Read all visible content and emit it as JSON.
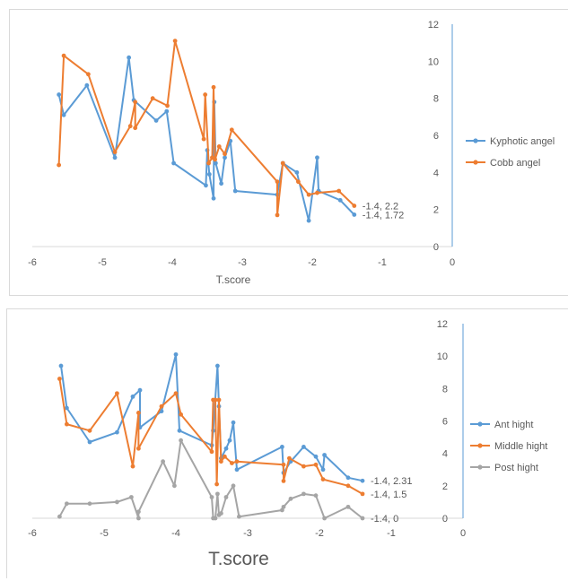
{
  "chart_data": [
    {
      "type": "line",
      "title": "",
      "xlabel": "T.score",
      "ylabel": "",
      "xlim": [
        -6,
        0
      ],
      "ylim": [
        0,
        12
      ],
      "x_ticks": [
        "-6",
        "-5",
        "-4",
        "-3",
        "-2",
        "-1",
        "0"
      ],
      "y_ticks": [
        "0",
        "2",
        "4",
        "6",
        "8",
        "10",
        "12"
      ],
      "grid": false,
      "legend_position": "right",
      "series": [
        {
          "name": "Kyphotic angel",
          "color": "#5b9bd5",
          "points": [
            [
              -5.62,
              8.2
            ],
            [
              -5.55,
              7.1
            ],
            [
              -5.22,
              8.7
            ],
            [
              -4.82,
              4.8
            ],
            [
              -4.62,
              10.2
            ],
            [
              -4.55,
              7.9
            ],
            [
              -4.23,
              6.8
            ],
            [
              -4.08,
              7.3
            ],
            [
              -3.98,
              4.5
            ],
            [
              -3.52,
              3.3
            ],
            [
              -3.5,
              5.2
            ],
            [
              -3.47,
              3.9
            ],
            [
              -3.41,
              2.6
            ],
            [
              -3.4,
              7.8
            ],
            [
              -3.38,
              4.5
            ],
            [
              -3.3,
              3.4
            ],
            [
              -3.25,
              4.8
            ],
            [
              -3.17,
              5.7
            ],
            [
              -3.1,
              3.0
            ],
            [
              -2.5,
              2.8
            ],
            [
              -2.42,
              4.5
            ],
            [
              -2.22,
              4.0
            ],
            [
              -2.05,
              1.4
            ],
            [
              -1.93,
              4.8
            ],
            [
              -1.91,
              3.0
            ],
            [
              -1.6,
              2.5
            ],
            [
              -1.4,
              1.72
            ]
          ],
          "end_label": "-1.4, 1.72"
        },
        {
          "name": "Cobb angel",
          "color": "#ed7d31",
          "points": [
            [
              -5.62,
              4.4
            ],
            [
              -5.55,
              10.3
            ],
            [
              -5.2,
              9.3
            ],
            [
              -4.82,
              5.1
            ],
            [
              -4.6,
              6.5
            ],
            [
              -4.53,
              7.8
            ],
            [
              -4.53,
              6.4
            ],
            [
              -4.28,
              8.0
            ],
            [
              -4.07,
              7.6
            ],
            [
              -3.96,
              11.1
            ],
            [
              -3.55,
              5.8
            ],
            [
              -3.53,
              8.2
            ],
            [
              -3.48,
              4.5
            ],
            [
              -3.43,
              4.8
            ],
            [
              -3.41,
              8.6
            ],
            [
              -3.39,
              4.7
            ],
            [
              -3.33,
              5.4
            ],
            [
              -3.25,
              5.0
            ],
            [
              -3.15,
              6.3
            ],
            [
              -2.5,
              3.5
            ],
            [
              -2.5,
              1.7
            ],
            [
              -2.42,
              4.5
            ],
            [
              -2.2,
              3.5
            ],
            [
              -2.05,
              2.8
            ],
            [
              -1.93,
              2.9
            ],
            [
              -1.62,
              3.0
            ],
            [
              -1.4,
              2.2
            ]
          ],
          "end_label": "-1.4, 2.2"
        }
      ]
    },
    {
      "type": "line",
      "title": "",
      "xlabel": "T.score",
      "ylabel": "",
      "xlim": [
        -6,
        0
      ],
      "ylim": [
        0,
        12
      ],
      "x_ticks": [
        "-6",
        "-5",
        "-4",
        "-3",
        "-2",
        "-1",
        "0"
      ],
      "y_ticks": [
        "0",
        "2",
        "4",
        "6",
        "8",
        "10",
        "12"
      ],
      "grid": false,
      "legend_position": "right",
      "series": [
        {
          "name": "Ant hight",
          "color": "#5b9bd5",
          "points": [
            [
              -5.6,
              9.4
            ],
            [
              -5.52,
              6.8
            ],
            [
              -5.2,
              4.7
            ],
            [
              -4.82,
              5.3
            ],
            [
              -4.6,
              7.5
            ],
            [
              -4.5,
              7.9
            ],
            [
              -4.5,
              5.6
            ],
            [
              -4.2,
              6.6
            ],
            [
              -4.0,
              10.1
            ],
            [
              -3.95,
              5.4
            ],
            [
              -3.5,
              4.5
            ],
            [
              -3.48,
              5.4
            ],
            [
              -3.42,
              9.4
            ],
            [
              -3.4,
              6.9
            ],
            [
              -3.37,
              3.7
            ],
            [
              -3.3,
              4.3
            ],
            [
              -3.25,
              4.8
            ],
            [
              -3.2,
              5.9
            ],
            [
              -3.15,
              3.0
            ],
            [
              -2.52,
              4.4
            ],
            [
              -2.5,
              2.8
            ],
            [
              -2.4,
              3.5
            ],
            [
              -2.22,
              4.4
            ],
            [
              -2.05,
              3.8
            ],
            [
              -1.95,
              3.0
            ],
            [
              -1.93,
              3.9
            ],
            [
              -1.6,
              2.5
            ],
            [
              -1.4,
              2.31
            ]
          ],
          "end_label": "-1.4, 2.31"
        },
        {
          "name": "Middle hight",
          "color": "#ed7d31",
          "points": [
            [
              -5.62,
              8.6
            ],
            [
              -5.52,
              5.8
            ],
            [
              -5.2,
              5.4
            ],
            [
              -4.82,
              7.7
            ],
            [
              -4.6,
              3.2
            ],
            [
              -4.52,
              6.5
            ],
            [
              -4.52,
              4.3
            ],
            [
              -4.2,
              6.9
            ],
            [
              -4.0,
              7.7
            ],
            [
              -3.93,
              6.4
            ],
            [
              -3.5,
              4.1
            ],
            [
              -3.48,
              7.3
            ],
            [
              -3.45,
              7.3
            ],
            [
              -3.43,
              2.1
            ],
            [
              -3.4,
              7.3
            ],
            [
              -3.37,
              3.5
            ],
            [
              -3.32,
              3.8
            ],
            [
              -3.22,
              3.4
            ],
            [
              -3.15,
              3.5
            ],
            [
              -2.5,
              3.3
            ],
            [
              -2.5,
              2.3
            ],
            [
              -2.42,
              3.7
            ],
            [
              -2.22,
              3.2
            ],
            [
              -2.05,
              3.3
            ],
            [
              -1.95,
              2.4
            ],
            [
              -1.6,
              2.0
            ],
            [
              -1.4,
              1.5
            ]
          ],
          "end_label": "-1.4, 1.5"
        },
        {
          "name": "Post hight",
          "color": "#a5a5a5",
          "points": [
            [
              -5.62,
              0.1
            ],
            [
              -5.52,
              0.9
            ],
            [
              -5.2,
              0.9
            ],
            [
              -4.82,
              1.0
            ],
            [
              -4.62,
              1.3
            ],
            [
              -4.52,
              0.0
            ],
            [
              -4.52,
              0.4
            ],
            [
              -4.18,
              3.5
            ],
            [
              -4.02,
              2.0
            ],
            [
              -3.93,
              4.8
            ],
            [
              -3.5,
              1.3
            ],
            [
              -3.48,
              0.0
            ],
            [
              -3.45,
              0.0
            ],
            [
              -3.42,
              1.5
            ],
            [
              -3.4,
              0.2
            ],
            [
              -3.37,
              0.3
            ],
            [
              -3.3,
              1.3
            ],
            [
              -3.2,
              2.0
            ],
            [
              -3.12,
              0.1
            ],
            [
              -2.52,
              0.5
            ],
            [
              -2.5,
              0.7
            ],
            [
              -2.4,
              1.2
            ],
            [
              -2.22,
              1.5
            ],
            [
              -2.05,
              1.4
            ],
            [
              -1.93,
              0.0
            ],
            [
              -1.6,
              0.7
            ],
            [
              -1.4,
              0.0
            ]
          ],
          "end_label": "-1.4, 0"
        }
      ]
    }
  ]
}
